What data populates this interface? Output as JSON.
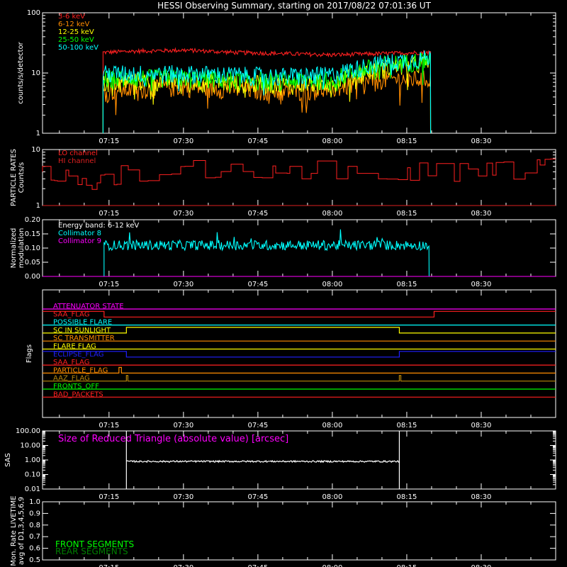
{
  "title": "HESSI Observing Summary, starting on 2017/08/22 07:01:36 UT",
  "time_ticks": [
    "07:15",
    "07:30",
    "07:45",
    "08:00",
    "08:15",
    "08:30"
  ],
  "time_tick_minutes": [
    15,
    30,
    45,
    60,
    75,
    90
  ],
  "time_range_minutes": [
    1.6,
    105
  ],
  "colors": {
    "bg": "#000000",
    "axis": "#ffffff"
  },
  "chart_data": [
    {
      "type": "line",
      "panel": "counts",
      "ylabel": "counts/s/detector",
      "yscale": "log",
      "ylim": [
        1,
        100
      ],
      "yticks": [
        "1",
        "10",
        "100"
      ],
      "data_start_min": 13.8,
      "data_end_min": 79.8,
      "series": [
        {
          "name": "3-6 keV",
          "color": "#ff2020",
          "x": [
            14,
            20,
            30,
            40,
            50,
            60,
            70,
            79.5
          ],
          "y": [
            22,
            23,
            24,
            22,
            21,
            20,
            21,
            22
          ]
        },
        {
          "name": "6-12 keV",
          "color": "#ff8c00",
          "x": [
            14,
            20,
            30,
            40,
            50,
            60,
            70,
            79.5
          ],
          "y": [
            5,
            5.5,
            6,
            5.5,
            5,
            5.5,
            8,
            8
          ]
        },
        {
          "name": "12-25 keV",
          "color": "#ffff00",
          "x": [
            14,
            20,
            30,
            40,
            50,
            60,
            70,
            79.5
          ],
          "y": [
            7,
            7.5,
            7.5,
            7,
            6.5,
            7,
            12,
            15
          ]
        },
        {
          "name": "25-50 keV",
          "color": "#00ff00",
          "x": [
            14,
            20,
            30,
            40,
            50,
            60,
            70,
            79.5
          ],
          "y": [
            8,
            8.5,
            8.5,
            8,
            7.5,
            8,
            14,
            17
          ]
        },
        {
          "name": "50-100 keV",
          "color": "#00ffff",
          "x": [
            14,
            20,
            30,
            40,
            50,
            60,
            70,
            79.5
          ],
          "y": [
            10,
            10,
            10,
            9.5,
            9,
            9.5,
            15,
            18
          ]
        }
      ]
    },
    {
      "type": "line",
      "panel": "particle",
      "ylabel": "PARTICLE RATES Counts/s",
      "yscale": "log",
      "ylim": [
        1,
        10
      ],
      "yticks": [
        "1",
        "10"
      ],
      "series": [
        {
          "name": "LO channel",
          "color": "#ff2020",
          "x": [
            1.6,
            10,
            20,
            30,
            40,
            50,
            60,
            70,
            80,
            90,
            105
          ],
          "y": [
            4,
            3,
            4.5,
            5,
            5.5,
            5,
            5,
            5,
            4.5,
            4.5,
            5.5
          ]
        },
        {
          "name": "HI channel",
          "color": "#dd2020",
          "x": [
            1.6,
            105
          ],
          "y": [
            1,
            1
          ]
        }
      ]
    },
    {
      "type": "line",
      "panel": "modulation",
      "ylabel": "Normalized modulation",
      "ylim": [
        0,
        0.2
      ],
      "yticks": [
        "0.00",
        "0.05",
        "0.10",
        "0.15",
        "0.20"
      ],
      "annotation": "Energy band: 6-12 keV",
      "series": [
        {
          "name": "Collimator 8",
          "color": "#00ffff",
          "x": [
            14,
            79.5
          ],
          "y": [
            0.11,
            0.11
          ]
        },
        {
          "name": "Collimator 9",
          "color": "#ff00ff",
          "x": [
            1.6,
            105
          ],
          "y": [
            0,
            0
          ]
        }
      ]
    },
    {
      "type": "line",
      "panel": "flags",
      "ylabel": "Flags",
      "flags": [
        {
          "name": "ATTENUATOR STATE",
          "color": "#ff00ff",
          "segments": [
            [
              1.6,
              105,
              0
            ]
          ]
        },
        {
          "name": "SAA_FLAG",
          "color": "#ff2020",
          "segments": [
            [
              1.6,
              14,
              1
            ],
            [
              14,
              80.5,
              0
            ],
            [
              80.5,
              105,
              1
            ]
          ]
        },
        {
          "name": "POSSIBLE FLARE",
          "color": "#00ffff",
          "segments": [
            [
              1.6,
              105,
              0
            ]
          ]
        },
        {
          "name": "SC IN SUNLIGHT",
          "color": "#ffff00",
          "segments": [
            [
              1.6,
              18.5,
              0
            ],
            [
              18.5,
              73.5,
              1
            ],
            [
              73.5,
              105,
              0
            ]
          ]
        },
        {
          "name": "SC TRANSMITTER",
          "color": "#ff8c00",
          "segments": [
            [
              1.6,
              105,
              0
            ]
          ]
        },
        {
          "name": "FLARE FLAG",
          "color": "#ffff00",
          "segments": [
            [
              1.6,
              105,
              0
            ]
          ]
        },
        {
          "name": "ECLIPSE_FLAG",
          "color": "#2020ff",
          "segments": [
            [
              1.6,
              18.5,
              1
            ],
            [
              18.5,
              73.5,
              0
            ],
            [
              73.5,
              105,
              1
            ]
          ]
        },
        {
          "name": "SAA_FLAG",
          "color": "#ff2020",
          "segments": [
            [
              1.6,
              105,
              0
            ]
          ]
        },
        {
          "name": "PARTICLE_FLAG",
          "color": "#ff8c00",
          "segments": [
            [
              1.6,
              17,
              0
            ],
            [
              17,
              17.5,
              1
            ],
            [
              17.5,
              105,
              0
            ]
          ]
        },
        {
          "name": "AAZ_FLAG",
          "color": "#b8860b",
          "segments": [
            [
              1.6,
              18.5,
              0
            ],
            [
              18.5,
              18.8,
              1
            ],
            [
              18.8,
              73.5,
              0
            ],
            [
              73.5,
              73.8,
              1
            ],
            [
              73.8,
              105,
              0
            ]
          ]
        },
        {
          "name": "FRONTS_OFF",
          "color": "#00ff00",
          "segments": [
            [
              1.6,
              105,
              0
            ]
          ]
        },
        {
          "name": "BAD_PACKETS",
          "color": "#ff2020",
          "segments": [
            [
              1.6,
              105,
              0
            ]
          ]
        }
      ]
    },
    {
      "type": "line",
      "panel": "sas",
      "ylabel": "SAS",
      "yscale": "log",
      "ylim": [
        0.01,
        100
      ],
      "yticks": [
        "0.01",
        "0.10",
        "1.00",
        "10.00",
        "100.00"
      ],
      "annotation": "Size of Reduced Triangle (absolute value) [arcsec]",
      "annotation_color": "#ff00ff",
      "series": [
        {
          "name": "",
          "color": "#ffffff",
          "x": [
            18.5,
            73.5
          ],
          "y": [
            0.8,
            0.8
          ]
        }
      ]
    },
    {
      "type": "line",
      "panel": "livetime",
      "ylabel": "Mon. Rate LIVETIME avg of D1,3,4,5,6,9",
      "ylim": [
        0.5,
        1.0
      ],
      "yticks": [
        "0.5",
        "0.6",
        "0.7",
        "0.8",
        "0.9",
        "1.0"
      ],
      "legend": [
        {
          "name": "FRONT SEGMENTS",
          "color": "#00ff00"
        },
        {
          "name": "REAR SEGMENTS",
          "color": "#008000"
        }
      ]
    }
  ]
}
